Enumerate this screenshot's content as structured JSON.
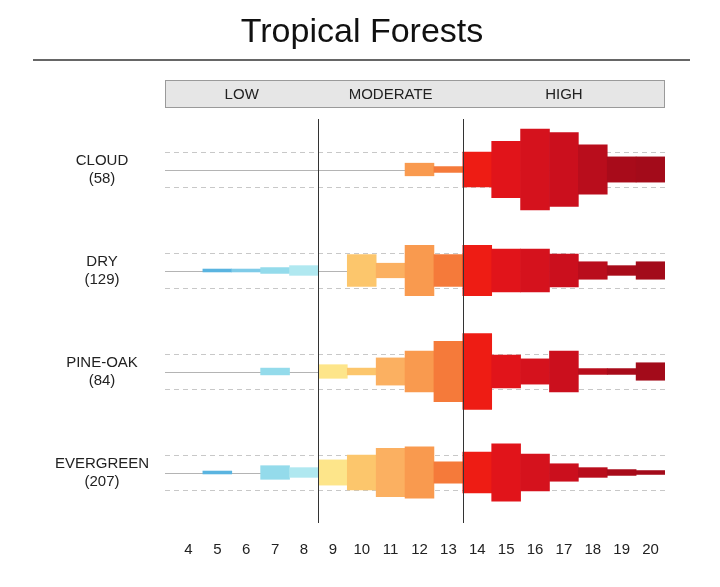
{
  "chart_data": {
    "type": "bar",
    "title": "Tropical Forests",
    "categories": [
      4,
      5,
      6,
      7,
      8,
      9,
      10,
      11,
      12,
      13,
      14,
      15,
      16,
      17,
      18,
      19,
      20
    ],
    "colors": [
      "#4aa8d8",
      "#5ab4e0",
      "#7fcbe8",
      "#94dbeb",
      "#b0e8f0",
      "#fde58a",
      "#fcc66c",
      "#fbb061",
      "#f99a4f",
      "#f57a3a",
      "#ee1c14",
      "#e1141a",
      "#d5121d",
      "#cb0f1d",
      "#b90d1c",
      "#a80b1a",
      "#a30b1a"
    ],
    "bands": [
      {
        "label": "LOW",
        "from": 4,
        "to": 8
      },
      {
        "label": "MODERATE",
        "from": 9,
        "to": 13
      },
      {
        "label": "HIGH",
        "from": 14,
        "to": 20
      }
    ],
    "series": [
      {
        "name": "CLOUD",
        "count": "(58)",
        "values": [
          null,
          null,
          null,
          null,
          null,
          null,
          null,
          null,
          13,
          6,
          36,
          58,
          83,
          76,
          51,
          26,
          26
        ]
      },
      {
        "name": "DRY",
        "count": "(129)",
        "values": [
          null,
          3,
          3,
          6,
          10,
          null,
          33,
          15,
          52,
          33,
          52,
          44,
          44,
          34,
          18,
          10,
          18
        ]
      },
      {
        "name": "PINE-OAK",
        "count": "(84)",
        "values": [
          null,
          null,
          null,
          7,
          null,
          14,
          7,
          28,
          42,
          62,
          78,
          34,
          26,
          42,
          6,
          6,
          18
        ]
      },
      {
        "name": "EVERGREEN",
        "count": "(207)",
        "values": [
          null,
          3,
          null,
          14,
          10,
          26,
          36,
          50,
          53,
          22,
          42,
          59,
          38,
          18,
          10,
          6,
          4
        ]
      }
    ],
    "tick_labels": "x",
    "grid": false
  }
}
